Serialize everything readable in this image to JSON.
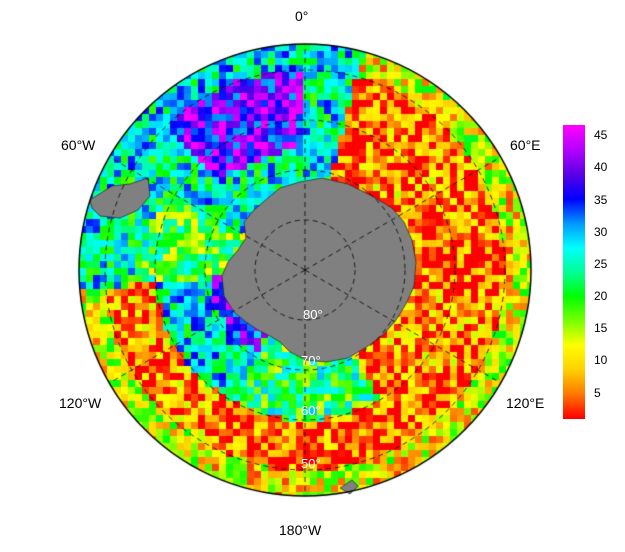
{
  "map": {
    "projection": "south-polar-stereographic",
    "land_color": "#808080",
    "longitude_labels": [
      {
        "id": "lon-0",
        "text": "0°"
      },
      {
        "id": "lon-60e",
        "text": "60°E"
      },
      {
        "id": "lon-120e",
        "text": "120°E"
      },
      {
        "id": "lon-180",
        "text": "180°W"
      },
      {
        "id": "lon-120w",
        "text": "120°W"
      },
      {
        "id": "lon-60w",
        "text": "60°W"
      }
    ],
    "latitude_labels": [
      {
        "id": "lat-80",
        "text": "80°"
      },
      {
        "id": "lat-70",
        "text": "70°"
      },
      {
        "id": "lat-60",
        "text": "60°"
      },
      {
        "id": "lat-50",
        "text": "50°"
      }
    ]
  },
  "colorbar": {
    "ticks": [
      "45",
      "40",
      "35",
      "30",
      "25",
      "20",
      "15",
      "10",
      "5"
    ],
    "range": [
      1,
      48
    ],
    "colors": [
      "#ff0000",
      "#ff7800",
      "#ffd200",
      "#ffff00",
      "#78ff00",
      "#00ff00",
      "#00ff96",
      "#00ffff",
      "#0096ff",
      "#0000ff",
      "#5a00e6",
      "#b400ff",
      "#ff00ff"
    ]
  }
}
